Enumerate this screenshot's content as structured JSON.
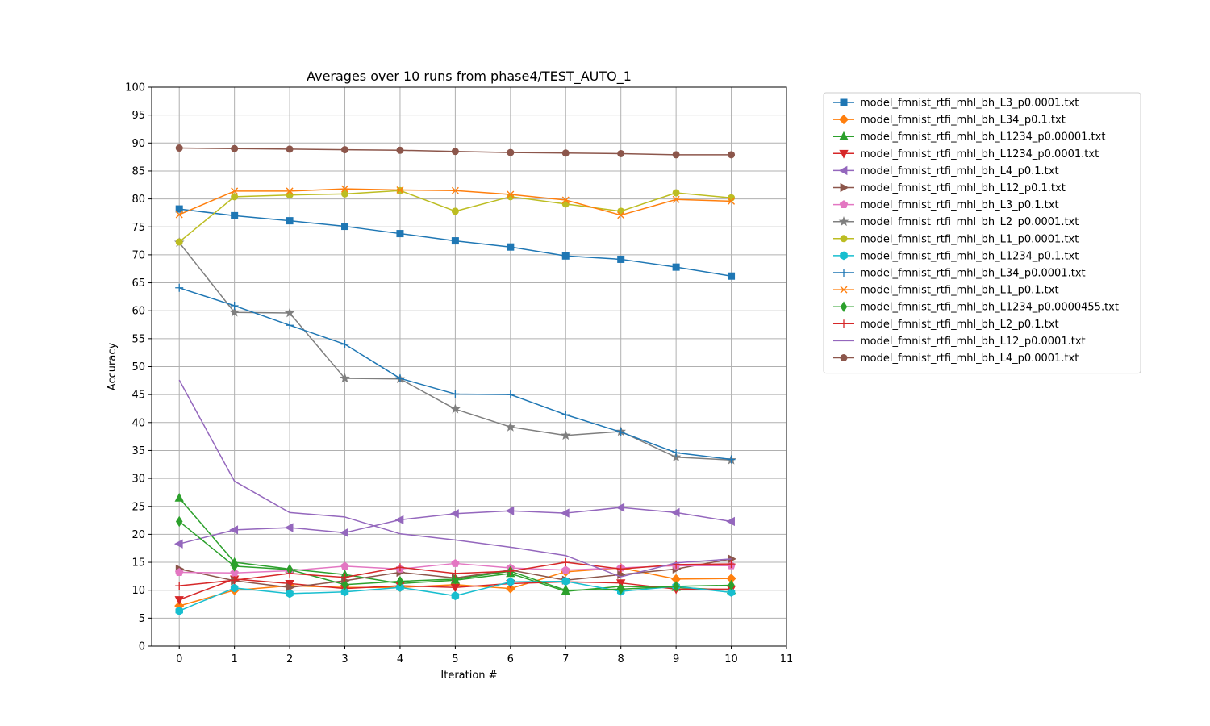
{
  "chart_data": {
    "type": "line",
    "title": "Averages over 10 runs from phase4/TEST_AUTO_1",
    "xlabel": "Iteration #",
    "ylabel": "Accuracy",
    "xlim": [
      -0.5,
      11
    ],
    "ylim": [
      0,
      100
    ],
    "xticks": [
      0,
      1,
      2,
      3,
      4,
      5,
      6,
      7,
      8,
      9,
      10,
      11
    ],
    "yticks": [
      0,
      5,
      10,
      15,
      20,
      25,
      30,
      35,
      40,
      45,
      50,
      55,
      60,
      65,
      70,
      75,
      80,
      85,
      90,
      95,
      100
    ],
    "grid": true,
    "legend_position": "outside-right-top",
    "x": [
      0,
      1,
      2,
      3,
      4,
      5,
      6,
      7,
      8,
      9,
      10
    ],
    "series": [
      {
        "name": "model_fmnist_rtfi_mhl_bh_L3_p0.0001.txt",
        "color": "#1f77b4",
        "marker": "square",
        "values": [
          78.2,
          77.0,
          76.1,
          75.1,
          73.8,
          72.5,
          71.4,
          69.8,
          69.2,
          67.8,
          66.2
        ]
      },
      {
        "name": "model_fmnist_rtfi_mhl_bh_L34_p0.1.txt",
        "color": "#ff7f0e",
        "marker": "diamond",
        "values": [
          7.2,
          10.0,
          10.8,
          10.5,
          10.5,
          11.0,
          10.3,
          13.3,
          14.0,
          12.0,
          12.1
        ]
      },
      {
        "name": "model_fmnist_rtfi_mhl_bh_L1234_p0.00001.txt",
        "color": "#2ca02c",
        "marker": "triangle-up",
        "values": [
          26.5,
          15.0,
          13.8,
          12.8,
          11.2,
          11.8,
          13.0,
          9.8,
          10.7,
          10.5,
          10.0
        ]
      },
      {
        "name": "model_fmnist_rtfi_mhl_bh_L1234_p0.0001.txt",
        "color": "#d62728",
        "marker": "triangle-down",
        "values": [
          8.3,
          12.0,
          11.2,
          10.3,
          10.8,
          10.5,
          11.2,
          11.5,
          11.3,
          10.2,
          10.2
        ]
      },
      {
        "name": "model_fmnist_rtfi_mhl_bh_L4_p0.1.txt",
        "color": "#9467bd",
        "marker": "triangle-left",
        "values": [
          18.3,
          20.8,
          21.2,
          20.3,
          22.6,
          23.7,
          24.2,
          23.8,
          24.8,
          23.9,
          22.3
        ]
      },
      {
        "name": "model_fmnist_rtfi_mhl_bh_L12_p0.1.txt",
        "color": "#8c564b",
        "marker": "triangle-right",
        "values": [
          13.8,
          11.7,
          10.5,
          11.7,
          13.2,
          12.2,
          13.6,
          11.8,
          12.8,
          13.8,
          15.6
        ]
      },
      {
        "name": "model_fmnist_rtfi_mhl_bh_L3_p0.1.txt",
        "color": "#e377c2",
        "marker": "pentagon",
        "values": [
          13.2,
          13.1,
          13.5,
          14.3,
          13.8,
          14.8,
          14.0,
          13.6,
          14.0,
          14.4,
          14.4
        ]
      },
      {
        "name": "model_fmnist_rtfi_mhl_bh_L2_p0.0001.txt",
        "color": "#7f7f7f",
        "marker": "star",
        "values": [
          72.2,
          59.7,
          59.6,
          47.9,
          47.8,
          42.4,
          39.2,
          37.7,
          38.4,
          33.8,
          33.3
        ]
      },
      {
        "name": "model_fmnist_rtfi_mhl_bh_L1_p0.0001.txt",
        "color": "#bcbd22",
        "marker": "circle",
        "values": [
          72.3,
          80.4,
          80.7,
          80.9,
          81.5,
          77.8,
          80.4,
          79.1,
          77.8,
          81.1,
          80.2
        ]
      },
      {
        "name": "model_fmnist_rtfi_mhl_bh_L1234_p0.1.txt",
        "color": "#17becf",
        "marker": "hexagon",
        "values": [
          6.3,
          10.4,
          9.4,
          9.7,
          10.5,
          9.0,
          11.5,
          11.6,
          9.8,
          10.7,
          9.6
        ]
      },
      {
        "name": "model_fmnist_rtfi_mhl_bh_L34_p0.0001.txt",
        "color": "#1f77b4",
        "marker": "plus",
        "values": [
          64.1,
          60.9,
          57.4,
          54.0,
          47.9,
          45.1,
          45.0,
          41.4,
          38.3,
          34.6,
          33.4
        ]
      },
      {
        "name": "model_fmnist_rtfi_mhl_bh_L1_p0.1.txt",
        "color": "#ff7f0e",
        "marker": "x",
        "values": [
          77.2,
          81.4,
          81.4,
          81.8,
          81.6,
          81.5,
          80.8,
          79.8,
          77.1,
          79.9,
          79.6
        ]
      },
      {
        "name": "model_fmnist_rtfi_mhl_bh_L1234_p0.0000455.txt",
        "color": "#2ca02c",
        "marker": "thin-diamond",
        "values": [
          22.3,
          14.3,
          13.7,
          11.0,
          11.6,
          12.0,
          13.4,
          10.0,
          10.2,
          10.7,
          10.9
        ]
      },
      {
        "name": "model_fmnist_rtfi_mhl_bh_L2_p0.1.txt",
        "color": "#d62728",
        "marker": "plus",
        "values": [
          10.8,
          11.8,
          13.0,
          12.3,
          14.1,
          13.0,
          13.4,
          15.0,
          13.8,
          14.6,
          14.7
        ]
      },
      {
        "name": "model_fmnist_rtfi_mhl_bh_L12_p0.0001.txt",
        "color": "#9467bd",
        "marker": "none",
        "values": [
          47.6,
          29.5,
          23.9,
          23.1,
          20.1,
          19.0,
          17.7,
          16.2,
          12.4,
          14.9,
          15.6
        ]
      },
      {
        "name": "model_fmnist_rtfi_mhl_bh_L4_p0.0001.txt",
        "color": "#8c564b",
        "marker": "circle",
        "values": [
          89.1,
          89.0,
          88.9,
          88.8,
          88.7,
          88.5,
          88.3,
          88.2,
          88.1,
          87.9,
          87.9
        ]
      }
    ]
  }
}
